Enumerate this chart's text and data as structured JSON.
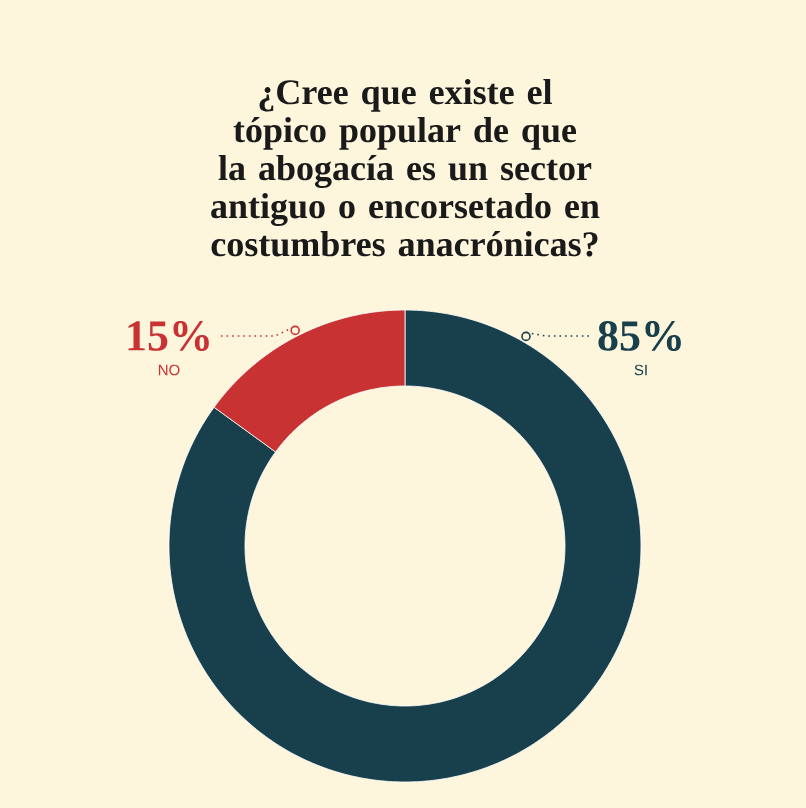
{
  "chart_data": {
    "type": "donut",
    "title": "¿Cree que existe el tópico popular de que la abogacía es un sector antiguo o encorsetado en costumbres anacrónicas?",
    "categories": [
      "SI",
      "NO"
    ],
    "values": [
      85,
      15
    ],
    "colors": [
      "#173f4c",
      "#c83232"
    ],
    "value_labels": [
      "85%",
      "15%"
    ]
  }
}
